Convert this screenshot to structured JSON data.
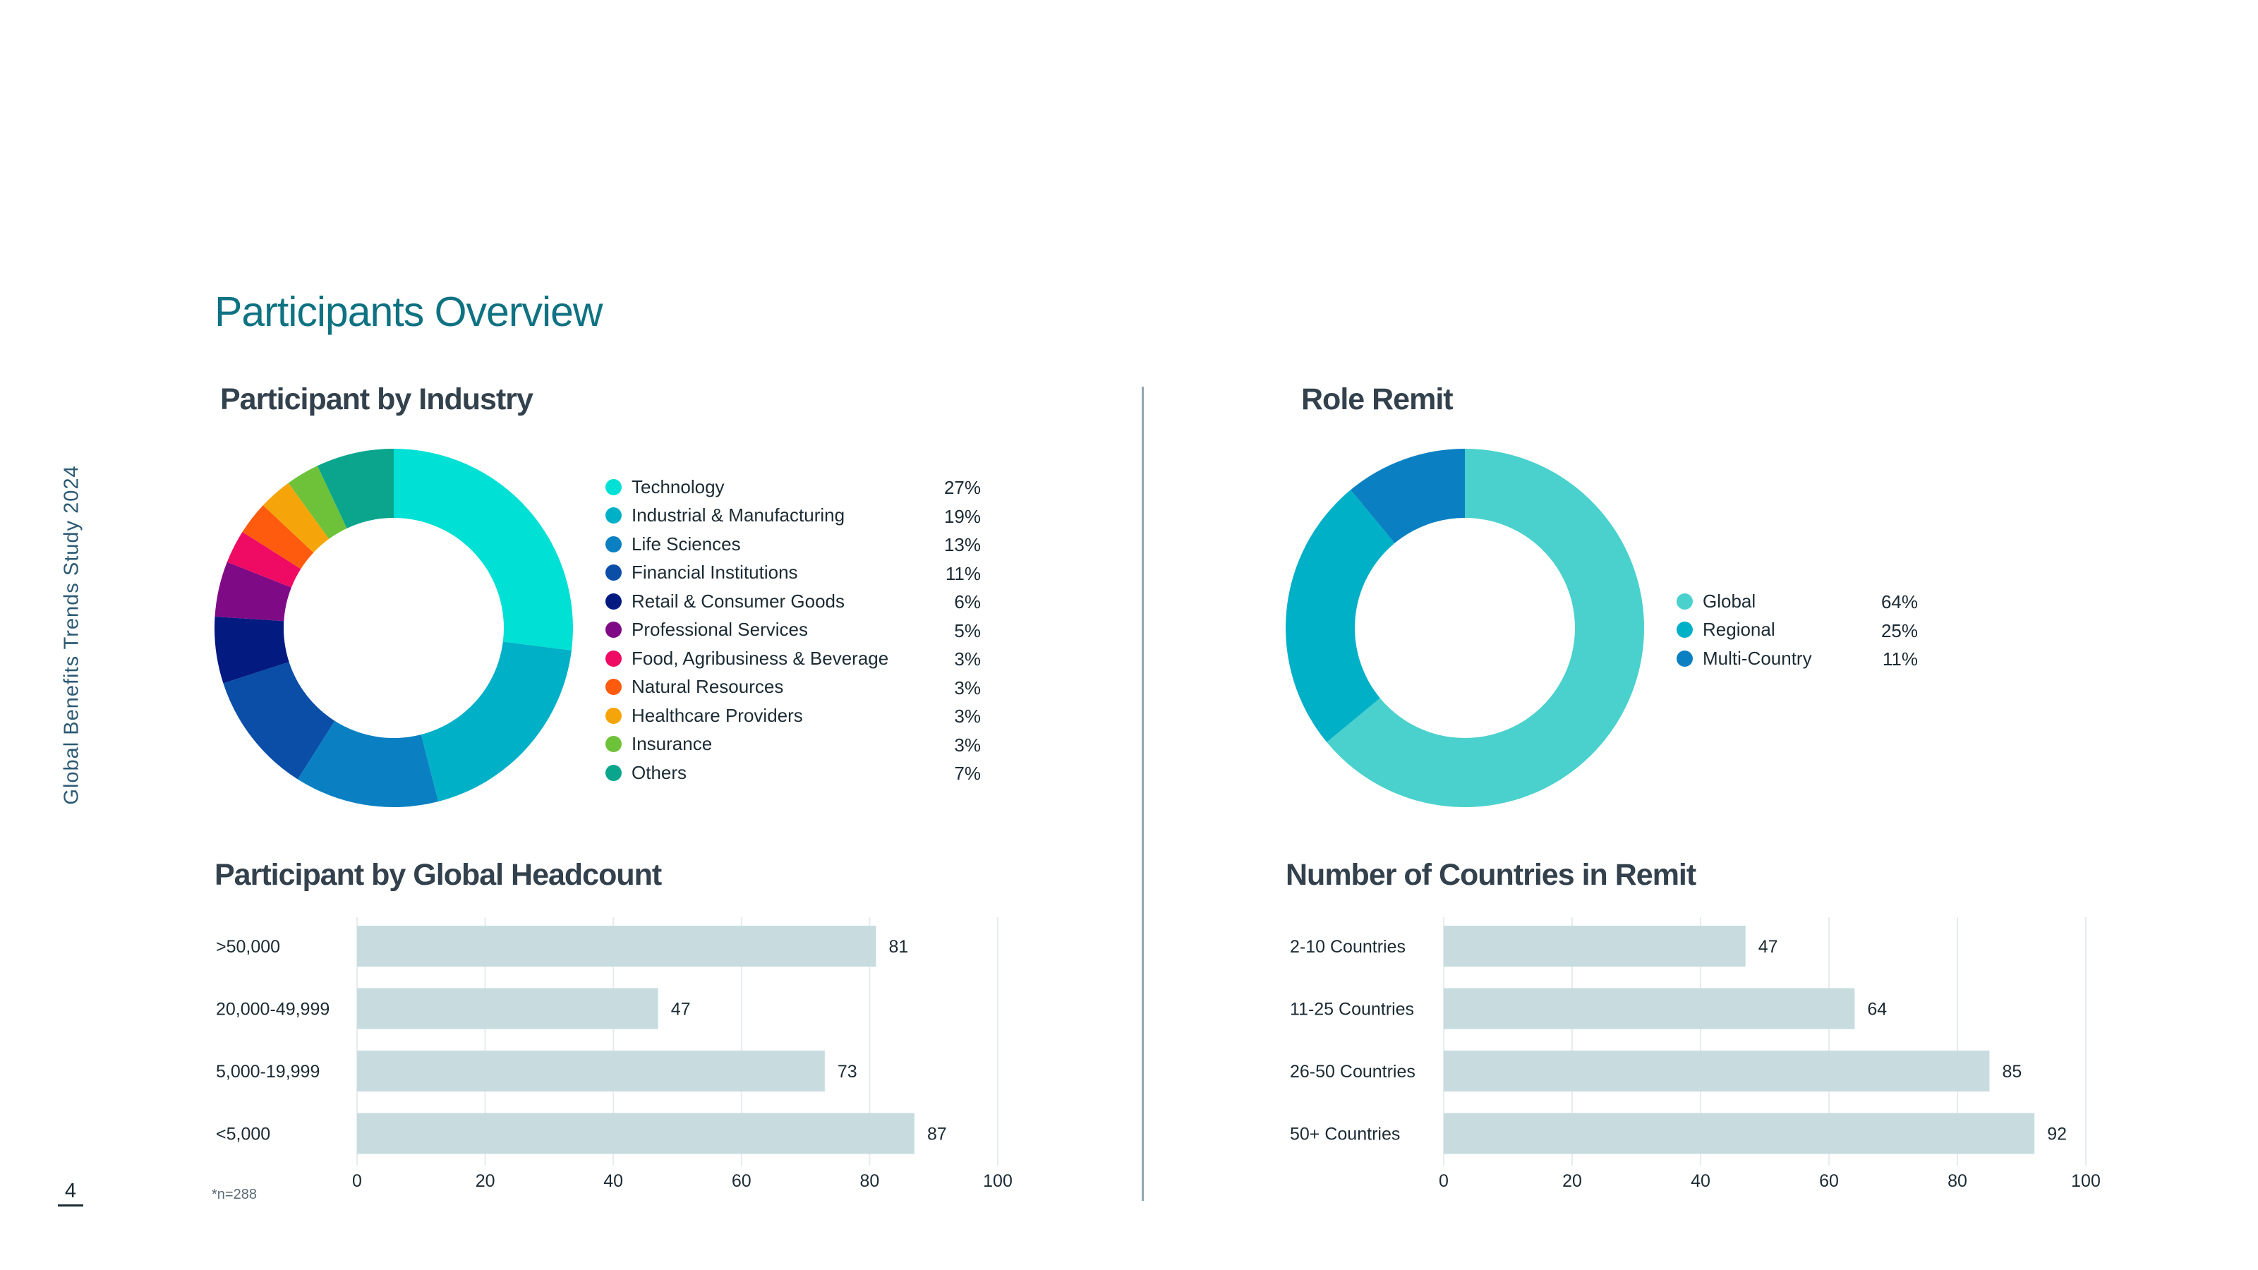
{
  "side_title": "Global Benefits Trends Study 2024",
  "page_number": "4",
  "page_title": "Participants Overview",
  "footnote": "*n=288",
  "chart_data": [
    {
      "type": "pie",
      "title": "Participant by Industry",
      "donut": true,
      "legend_position": "right",
      "slices": [
        {
          "label": "Technology",
          "value": 27,
          "display": "27%",
          "color": "#00e0d5"
        },
        {
          "label": "Industrial & Manufacturing",
          "value": 19,
          "display": "19%",
          "color": "#00b0c7"
        },
        {
          "label": "Life Sciences",
          "value": 13,
          "display": "13%",
          "color": "#0a80c2"
        },
        {
          "label": "Financial Institutions",
          "value": 11,
          "display": "11%",
          "color": "#0a4ea8"
        },
        {
          "label": "Retail & Consumer Goods",
          "value": 6,
          "display": "6%",
          "color": "#031a80"
        },
        {
          "label": "Professional Services",
          "value": 5,
          "display": "5%",
          "color": "#7f0a86"
        },
        {
          "label": "Food, Agribusiness & Beverage",
          "value": 3,
          "display": "3%",
          "color": "#ef0a63"
        },
        {
          "label": "Natural Resources",
          "value": 3,
          "display": "3%",
          "color": "#ff5b0f"
        },
        {
          "label": "Healthcare Providers",
          "value": 3,
          "display": "3%",
          "color": "#f5a50a"
        },
        {
          "label": "Insurance",
          "value": 3,
          "display": "3%",
          "color": "#6ec23a"
        },
        {
          "label": "Others",
          "value": 7,
          "display": "7%",
          "color": "#0aa58c"
        }
      ]
    },
    {
      "type": "pie",
      "title": "Role Remit",
      "donut": true,
      "legend_position": "right",
      "slices": [
        {
          "label": "Global",
          "value": 64,
          "display": "64%",
          "color": "#4ad1cd"
        },
        {
          "label": "Regional",
          "value": 25,
          "display": "25%",
          "color": "#00b0c7"
        },
        {
          "label": "Multi-Country",
          "value": 11,
          "display": "11%",
          "color": "#0a80c2"
        }
      ]
    },
    {
      "type": "bar",
      "orientation": "horizontal",
      "title": "Participant by Global Headcount",
      "categories": [
        ">50,000",
        "20,000-49,999",
        "5,000-19,999",
        "<5,000"
      ],
      "values": [
        81,
        47,
        73,
        87
      ],
      "xlim": [
        0,
        100
      ],
      "xticks": [
        0,
        20,
        40,
        60,
        80,
        100
      ],
      "grid": true,
      "bar_color": "#c8dce0"
    },
    {
      "type": "bar",
      "orientation": "horizontal",
      "title": "Number of Countries in Remit",
      "categories": [
        "2-10 Countries",
        "11-25 Countries",
        "26-50 Countries",
        "50+ Countries"
      ],
      "values": [
        47,
        64,
        85,
        92
      ],
      "xlim": [
        0,
        100
      ],
      "xticks": [
        0,
        20,
        40,
        60,
        80,
        100
      ],
      "grid": true,
      "bar_color": "#c8dce0"
    }
  ]
}
